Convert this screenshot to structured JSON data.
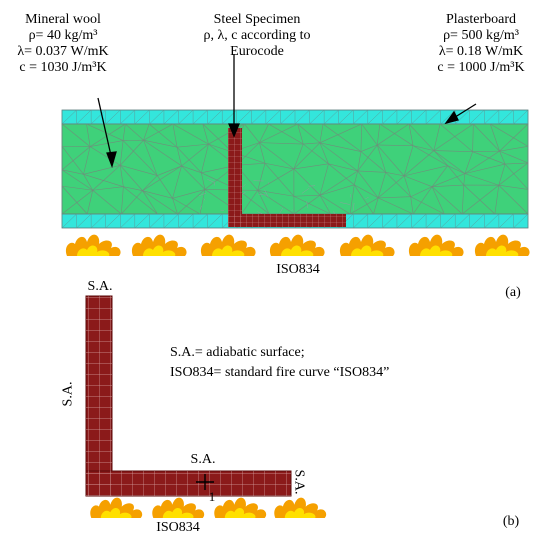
{
  "panel_a": {
    "mineral_wool": {
      "title": "Mineral wool",
      "density": "ρ= 40 kg/m³",
      "conductivity": "λ= 0.037 W/mK",
      "specific_heat": "c = 1030 J/m³K"
    },
    "steel_specimen": {
      "title": "Steel Specimen",
      "line2": "ρ, λ, c  according to",
      "line3": "Eurocode"
    },
    "plasterboard": {
      "title": "Plasterboard",
      "density": "ρ= 500 kg/m³",
      "conductivity": "λ= 0.18 W/mK",
      "specific_heat": "c = 1000 J/m³K"
    },
    "fire_label": "ISO834",
    "panel_label": "(a)",
    "colors": {
      "mineral_wool": "#3fd17a",
      "plasterboard": "#33e6dc",
      "steel": "#8b1a1a",
      "mesh": "#7a8a80",
      "flame_outer": "#f5a000",
      "flame_inner": "#ffe000"
    }
  },
  "panel_b": {
    "sa_top": "S.A.",
    "sa_left": "S.A.",
    "sa_bottom": "S.A.",
    "sa_right": "S.A.",
    "legend_line1": "S.A.= adiabatic surface;",
    "legend_line2": "ISO834= standard fire curve “ISO834”",
    "point_label": "1",
    "fire_label": "ISO834",
    "panel_label": "(b)"
  }
}
